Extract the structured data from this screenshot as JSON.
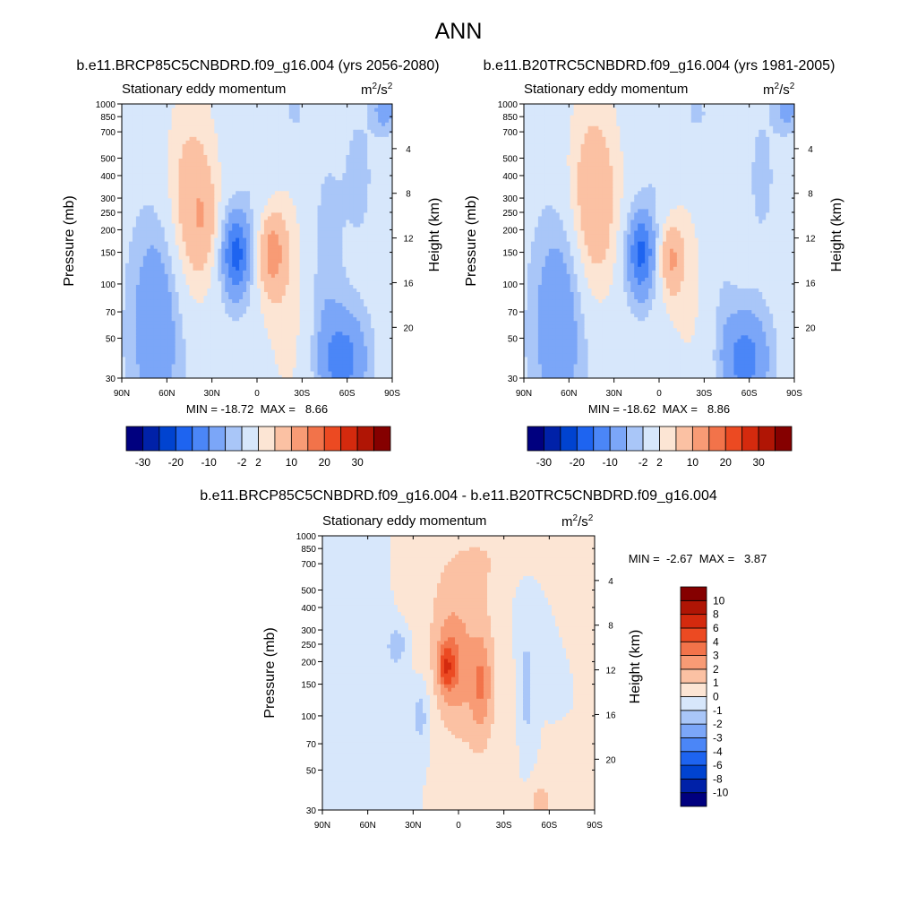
{
  "figure_title": "ANN",
  "ylabel": "Pressure (mb)",
  "y2label": "Height (km)",
  "units_base": "m",
  "units_sup1": "2",
  "units_mid": "/s",
  "units_sup2": "2",
  "panel_top_left": {
    "title": "b.e11.BRCP85C5CNBDRD.f09_g16.004 (yrs 2056-2080)",
    "variable": "Stationary eddy momentum",
    "stats": "MIN = -18.72  MAX =   8.66"
  },
  "panel_top_right": {
    "title": "b.e11.B20TRC5CNBDRD.f09_g16.004 (yrs 1981-2005)",
    "variable": "Stationary eddy momentum",
    "stats": "MIN = -18.62  MAX =   8.86"
  },
  "panel_bottom": {
    "title": "b.e11.BRCP85C5CNBDRD.f09_g16.004 - b.e11.B20TRC5CNBDRD.f09_g16.004",
    "variable": "Stationary eddy momentum",
    "stats": "MIN =  -2.67  MAX =   3.87"
  },
  "chart_data": [
    {
      "type": "heatmap",
      "title": "b.e11.BRCP85C5CNBDRD.f09_g16.004 (yrs 2056-2080)",
      "subtitle": "Stationary eddy momentum",
      "units": "m2/s2",
      "xlabel": "",
      "ylabel": "Pressure (mb)",
      "y2label": "Height (km)",
      "x_ticks": [
        "90N",
        "60N",
        "30N",
        "0",
        "30S",
        "60S",
        "90S"
      ],
      "y_ticks": [
        30,
        50,
        70,
        100,
        150,
        200,
        250,
        300,
        400,
        500,
        700,
        850,
        1000
      ],
      "y2_ticks": [
        4,
        8,
        12,
        16,
        20
      ],
      "xlim": [
        90,
        -90
      ],
      "ylim": [
        1000,
        30
      ],
      "y_scale": "log",
      "min": -18.72,
      "max": 8.66,
      "colorbar_labels": [
        "-30",
        "-20",
        "-10",
        "-2",
        "2",
        "10",
        "20",
        "30"
      ],
      "colorbar_levels": [
        -40,
        -30,
        -25,
        -20,
        -15,
        -10,
        -5,
        -2,
        2,
        5,
        10,
        15,
        20,
        25,
        30,
        40
      ],
      "colorbar_colors": [
        "#00007f",
        "#0021a8",
        "#0043d0",
        "#1e64f0",
        "#4b86f7",
        "#7ba6f8",
        "#a9c6f8",
        "#d7e7fb",
        "#fce5d4",
        "#fbc1a3",
        "#f89b75",
        "#f2734a",
        "#ec4a22",
        "#d42a0e",
        "#b01505",
        "#850000"
      ],
      "blobs": [
        {
          "lat": 67,
          "p": 45,
          "dlat": 14,
          "dlogp": 1.2,
          "v": -6
        },
        {
          "lat": 67,
          "p": 80,
          "dlat": 10,
          "dlogp": 0.7,
          "v": -4
        },
        {
          "lat": -58,
          "p": 38,
          "dlat": 11,
          "dlogp": 0.45,
          "v": -12
        },
        {
          "lat": -45,
          "p": 100,
          "dlat": 8,
          "dlogp": 1.2,
          "v": -4
        },
        {
          "lat": -68,
          "p": 400,
          "dlat": 10,
          "dlogp": 0.9,
          "v": -2.5
        },
        {
          "lat": 14,
          "p": 150,
          "dlat": 6,
          "dlogp": 0.35,
          "v": -14
        },
        {
          "lat": 13,
          "p": 130,
          "dlat": 10,
          "dlogp": 0.55,
          "v": -4
        },
        {
          "lat": -10,
          "p": 150,
          "dlat": 6,
          "dlogp": 0.35,
          "v": 9
        },
        {
          "lat": -10,
          "p": 140,
          "dlat": 11,
          "dlogp": 0.55,
          "v": 3
        },
        {
          "lat": 43,
          "p": 250,
          "dlat": 11,
          "dlogp": 0.8,
          "v": 6
        },
        {
          "lat": 35,
          "p": 230,
          "dlat": 6,
          "dlogp": 0.4,
          "v": 4
        },
        {
          "lat": 45,
          "p": 400,
          "dlat": 14,
          "dlogp": 1.1,
          "v": 2.5
        },
        {
          "lat": 0,
          "p": 500,
          "dlat": 8,
          "dlogp": 0.8,
          "v": -2
        },
        {
          "lat": -85,
          "p": 950,
          "dlat": 5,
          "dlogp": 0.2,
          "v": -8
        },
        {
          "lat": -25,
          "p": 900,
          "dlat": 6,
          "dlogp": 0.2,
          "v": -3
        },
        {
          "lat": -22,
          "p": 65,
          "dlat": 14,
          "dlogp": 1.4,
          "v": 2.5
        }
      ]
    },
    {
      "type": "heatmap",
      "title": "b.e11.B20TRC5CNBDRD.f09_g16.004 (yrs 1981-2005)",
      "subtitle": "Stationary eddy momentum",
      "units": "m2/s2",
      "xlabel": "",
      "ylabel": "Pressure (mb)",
      "y2label": "Height (km)",
      "x_ticks": [
        "90N",
        "60N",
        "30N",
        "0",
        "30S",
        "60S",
        "90S"
      ],
      "y_ticks": [
        30,
        50,
        70,
        100,
        150,
        200,
        250,
        300,
        400,
        500,
        700,
        850,
        1000
      ],
      "y2_ticks": [
        4,
        8,
        12,
        16,
        20
      ],
      "xlim": [
        90,
        -90
      ],
      "ylim": [
        1000,
        30
      ],
      "y_scale": "log",
      "min": -18.62,
      "max": 8.86,
      "colorbar_labels": [
        "-30",
        "-20",
        "-10",
        "-2",
        "2",
        "10",
        "20",
        "30"
      ],
      "colorbar_levels": [
        -40,
        -30,
        -25,
        -20,
        -15,
        -10,
        -5,
        -2,
        2,
        5,
        10,
        15,
        20,
        25,
        30,
        40
      ],
      "colorbar_colors": [
        "#00007f",
        "#0021a8",
        "#0043d0",
        "#1e64f0",
        "#4b86f7",
        "#7ba6f8",
        "#a9c6f8",
        "#d7e7fb",
        "#fce5d4",
        "#fbc1a3",
        "#f89b75",
        "#f2734a",
        "#ec4a22",
        "#d42a0e",
        "#b01505",
        "#850000"
      ],
      "blobs": [
        {
          "lat": 67,
          "p": 45,
          "dlat": 14,
          "dlogp": 1.2,
          "v": -6
        },
        {
          "lat": 67,
          "p": 80,
          "dlat": 10,
          "dlogp": 0.7,
          "v": -4
        },
        {
          "lat": -58,
          "p": 38,
          "dlat": 11,
          "dlogp": 0.45,
          "v": -12
        },
        {
          "lat": -45,
          "p": 100,
          "dlat": 8,
          "dlogp": 1.2,
          "v": -3
        },
        {
          "lat": -68,
          "p": 400,
          "dlat": 10,
          "dlogp": 0.9,
          "v": -2.5
        },
        {
          "lat": 12,
          "p": 150,
          "dlat": 6,
          "dlogp": 0.35,
          "v": -13
        },
        {
          "lat": 11,
          "p": 130,
          "dlat": 10,
          "dlogp": 0.55,
          "v": -4
        },
        {
          "lat": -8,
          "p": 140,
          "dlat": 5,
          "dlogp": 0.3,
          "v": 8
        },
        {
          "lat": -8,
          "p": 140,
          "dlat": 10,
          "dlogp": 0.5,
          "v": 3
        },
        {
          "lat": 43,
          "p": 270,
          "dlat": 11,
          "dlogp": 0.8,
          "v": 7
        },
        {
          "lat": 45,
          "p": 400,
          "dlat": 14,
          "dlogp": 1.1,
          "v": 2.5
        },
        {
          "lat": 0,
          "p": 500,
          "dlat": 8,
          "dlogp": 0.8,
          "v": -2
        },
        {
          "lat": -85,
          "p": 950,
          "dlat": 5,
          "dlogp": 0.2,
          "v": -7
        },
        {
          "lat": -25,
          "p": 900,
          "dlat": 6,
          "dlogp": 0.2,
          "v": -3
        },
        {
          "lat": -50,
          "p": 300,
          "dlat": 6,
          "dlogp": 1.0,
          "v": 2.5
        },
        {
          "lat": -22,
          "p": 65,
          "dlat": 14,
          "dlogp": 1.4,
          "v": 2
        }
      ]
    },
    {
      "type": "heatmap",
      "title": "b.e11.BRCP85C5CNBDRD.f09_g16.004 - b.e11.B20TRC5CNBDRD.f09_g16.004",
      "subtitle": "Stationary eddy momentum",
      "units": "m2/s2",
      "xlabel": "",
      "ylabel": "Pressure (mb)",
      "y2label": "Height (km)",
      "x_ticks": [
        "90N",
        "60N",
        "30N",
        "0",
        "30S",
        "60S",
        "90S"
      ],
      "y_ticks": [
        30,
        50,
        70,
        100,
        150,
        200,
        250,
        300,
        400,
        500,
        700,
        850,
        1000
      ],
      "y2_ticks": [
        4,
        8,
        12,
        16,
        20
      ],
      "xlim": [
        90,
        -90
      ],
      "ylim": [
        1000,
        30
      ],
      "y_scale": "log",
      "min": -2.67,
      "max": 3.87,
      "colorbar_labels": [
        "10",
        "8",
        "6",
        "4",
        "3",
        "2",
        "1",
        "0",
        "-1",
        "-2",
        "-3",
        "-4",
        "-6",
        "-8",
        "-10"
      ],
      "colorbar_levels": [
        -12,
        -10,
        -8,
        -6,
        -4,
        -3,
        -2,
        -1,
        0,
        1,
        2,
        3,
        4,
        6,
        8,
        10,
        12
      ],
      "colorbar_colors": [
        "#00007f",
        "#0021a8",
        "#0043d0",
        "#1e64f0",
        "#4b86f7",
        "#7ba6f8",
        "#a9c6f8",
        "#d7e7fb",
        "#fce5d4",
        "#fbc1a3",
        "#f89b75",
        "#f2734a",
        "#ec4a22",
        "#d42a0e",
        "#b01505",
        "#850000"
      ],
      "blobs": [
        {
          "lat": 60,
          "p": 250,
          "dlat": 14,
          "dlogp": 2.0,
          "v": -0.8
        },
        {
          "lat": 5,
          "p": 200,
          "dlat": 8,
          "dlogp": 0.5,
          "v": 2.5
        },
        {
          "lat": 8,
          "p": 190,
          "dlat": 3,
          "dlogp": 0.15,
          "v": 3.8
        },
        {
          "lat": -15,
          "p": 150,
          "dlat": 5,
          "dlogp": 0.45,
          "v": 2
        },
        {
          "lat": -10,
          "p": 170,
          "dlat": 14,
          "dlogp": 1.0,
          "v": 1.2
        },
        {
          "lat": 25,
          "p": 100,
          "dlat": 4,
          "dlogp": 0.3,
          "v": -1.5
        },
        {
          "lat": -45,
          "p": 130,
          "dlat": 3,
          "dlogp": 0.5,
          "v": -1.4
        },
        {
          "lat": 40,
          "p": 250,
          "dlat": 5,
          "dlogp": 0.2,
          "v": -1.5
        },
        {
          "lat": -55,
          "p": 33,
          "dlat": 6,
          "dlogp": 0.2,
          "v": 1.5
        },
        {
          "lat": -30,
          "p": 800,
          "dlat": 30,
          "dlogp": 0.4,
          "v": 0.7
        },
        {
          "lat": 25,
          "p": 600,
          "dlat": 20,
          "dlogp": 0.8,
          "v": 0.6
        },
        {
          "lat": -45,
          "p": 400,
          "dlat": 8,
          "dlogp": 0.5,
          "v": -0.7
        }
      ]
    }
  ]
}
